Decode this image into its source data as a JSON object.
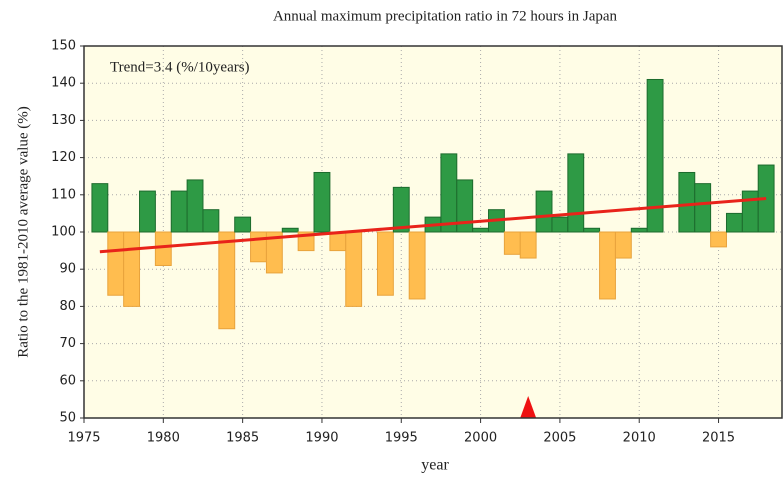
{
  "chart_data": {
    "type": "bar",
    "title": "Annual maximum precipitation ratio in 72 hours in Japan",
    "xlabel": "year",
    "ylabel": "Ratio to the 1981-2010 average value (%)",
    "annotation": "Trend=3.4 (%/10years)",
    "x": [
      1976,
      1977,
      1978,
      1979,
      1980,
      1981,
      1982,
      1983,
      1984,
      1985,
      1986,
      1987,
      1988,
      1989,
      1990,
      1991,
      1992,
      1993,
      1994,
      1995,
      1996,
      1997,
      1998,
      1999,
      2000,
      2001,
      2002,
      2003,
      2004,
      2005,
      2006,
      2007,
      2008,
      2009,
      2010,
      2011,
      2012,
      2013,
      2014,
      2015,
      2016,
      2017,
      2018
    ],
    "values": [
      113,
      83,
      80,
      111,
      91,
      111,
      114,
      106,
      74,
      104,
      92,
      89,
      101,
      95,
      116,
      95,
      80,
      100,
      83,
      112,
      82,
      104,
      121,
      114,
      101,
      106,
      94,
      93,
      111,
      104,
      121,
      101,
      82,
      93,
      101,
      141,
      100,
      116,
      113,
      96,
      105,
      111,
      118
    ],
    "baseline": 100,
    "color_above": "#2e9a45",
    "color_below": "#ffbd4f",
    "trend": {
      "x": [
        1976,
        2018
      ],
      "y": [
        94.7,
        109
      ],
      "color": "#e8231a"
    },
    "marker_x": 2003,
    "marker_color": "#ee1111",
    "xlim": [
      1975,
      2019
    ],
    "ylim": [
      50,
      150
    ],
    "xticks": [
      1975,
      1980,
      1985,
      1990,
      1995,
      2000,
      2005,
      2010,
      2015
    ],
    "yticks": [
      50,
      60,
      70,
      80,
      90,
      100,
      110,
      120,
      130,
      140,
      150
    ],
    "grid": true
  }
}
